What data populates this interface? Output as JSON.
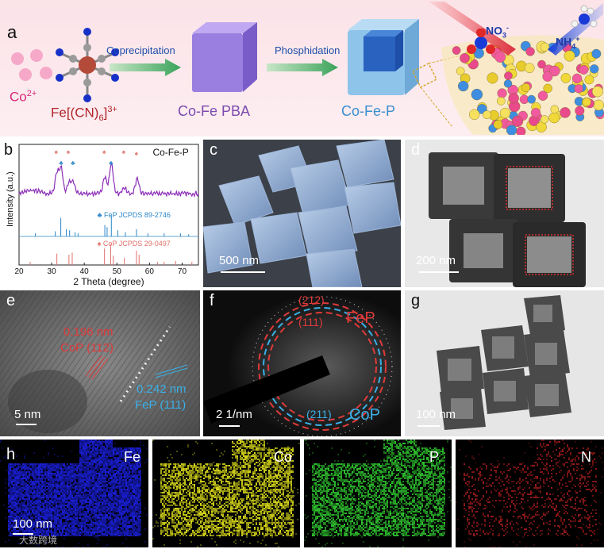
{
  "panel_labels": {
    "a": "a",
    "b": "b",
    "c": "c",
    "d": "d",
    "e": "e",
    "f": "f",
    "g": "g",
    "h": "h"
  },
  "schematic": {
    "co_ion": "Co",
    "co_ion_sup": "2+",
    "fe_complex_pre": "Fe[(CN)",
    "fe_complex_sub": "6",
    "fe_complex_post": "]",
    "fe_complex_sup": "3+",
    "step1": "Coprecipitation",
    "step2": "Phosphidation",
    "product1": "Co-Fe PBA",
    "product2": "Co-Fe-P",
    "reactant": "NO",
    "reactant_sub": "3",
    "reactant_sup": "-",
    "product": "NH",
    "product_sub": "4",
    "product_sup": "+",
    "colors": {
      "purple_cube": "#9a7fe0",
      "blue_cube": "#8fc4ea",
      "arrow": "#3aa35a",
      "co_text": "#d5297a",
      "feP_text": "#1f4ea8"
    }
  },
  "chart_data": {
    "type": "line",
    "title": "Co-Fe-P",
    "xlabel": "2 Theta (degree)",
    "ylabel": "Intensity (a.u.)",
    "xlim": [
      20,
      75
    ],
    "xticks": [
      20,
      30,
      40,
      50,
      60,
      70
    ],
    "reference1": {
      "name": "FeP JCPDS 89-2746",
      "color": "#2b86c8",
      "peaks": [
        [
          25.0,
          0.15
        ],
        [
          31.1,
          0.25
        ],
        [
          32.8,
          0.9
        ],
        [
          34.5,
          0.35
        ],
        [
          35.5,
          0.3
        ],
        [
          37.2,
          0.2
        ],
        [
          38.1,
          0.15
        ],
        [
          46.3,
          0.55
        ],
        [
          47.0,
          0.45
        ],
        [
          48.3,
          1.0
        ],
        [
          50.3,
          0.3
        ],
        [
          52.6,
          0.2
        ],
        [
          56.0,
          0.35
        ],
        [
          59.5,
          0.15
        ],
        [
          64.5,
          0.15
        ],
        [
          69.5,
          0.15
        ],
        [
          72.0,
          0.1
        ]
      ]
    },
    "reference2": {
      "name": "CoP JCPDS 29-0497",
      "color": "#e0706a",
      "peaks": [
        [
          23.4,
          0.15
        ],
        [
          31.6,
          0.55
        ],
        [
          35.3,
          0.5
        ],
        [
          36.3,
          0.6
        ],
        [
          46.2,
          0.8
        ],
        [
          48.1,
          1.0
        ],
        [
          48.9,
          0.45
        ],
        [
          52.3,
          0.35
        ],
        [
          56.0,
          0.7
        ],
        [
          56.8,
          0.5
        ],
        [
          62.5,
          0.15
        ],
        [
          64.5,
          0.15
        ],
        [
          68.0,
          0.2
        ],
        [
          73.0,
          0.15
        ]
      ]
    },
    "pattern_color": "#8c2fb8",
    "markers": [
      {
        "x": 31.6,
        "symbol": "♠",
        "color": "#e0706a"
      },
      {
        "x": 33.0,
        "symbol": "♣",
        "color": "#2b86c8"
      },
      {
        "x": 35.3,
        "symbol": "♠",
        "color": "#e0706a"
      },
      {
        "x": 36.6,
        "symbol": "♣",
        "color": "#2b86c8"
      },
      {
        "x": 46.3,
        "symbol": "♠",
        "color": "#e0706a"
      },
      {
        "x": 48.3,
        "symbol": "♣",
        "color": "#2b86c8"
      },
      {
        "x": 52.3,
        "symbol": "♠",
        "color": "#e0706a"
      },
      {
        "x": 56.2,
        "symbol": "♠",
        "color": "#e0706a"
      }
    ]
  },
  "microscopy": {
    "c_scale": "500 nm",
    "d_scale": "200 nm",
    "e_scale": "5 nm",
    "e_d1": "0.196 nm",
    "e_p1": "CoP (112)",
    "e_d2": "0.242 nm",
    "e_p2": "FeP (111)",
    "f_scale": "2 1/nm",
    "f_ring1": "(212)",
    "f_ring2": "(111)",
    "f_ring3": "(211)",
    "f_phase1": "FeP",
    "f_phase2": "CoP",
    "g_scale": "100 nm"
  },
  "mapping": {
    "scale": "100 nm",
    "channels": [
      {
        "label": "Fe",
        "color": "#1a1fd8"
      },
      {
        "label": "Co",
        "color": "#d8d81a"
      },
      {
        "label": "P",
        "color": "#2fc42f"
      },
      {
        "label": "N",
        "color": "#9a1a1a"
      }
    ]
  },
  "watermark": "大数跨境"
}
